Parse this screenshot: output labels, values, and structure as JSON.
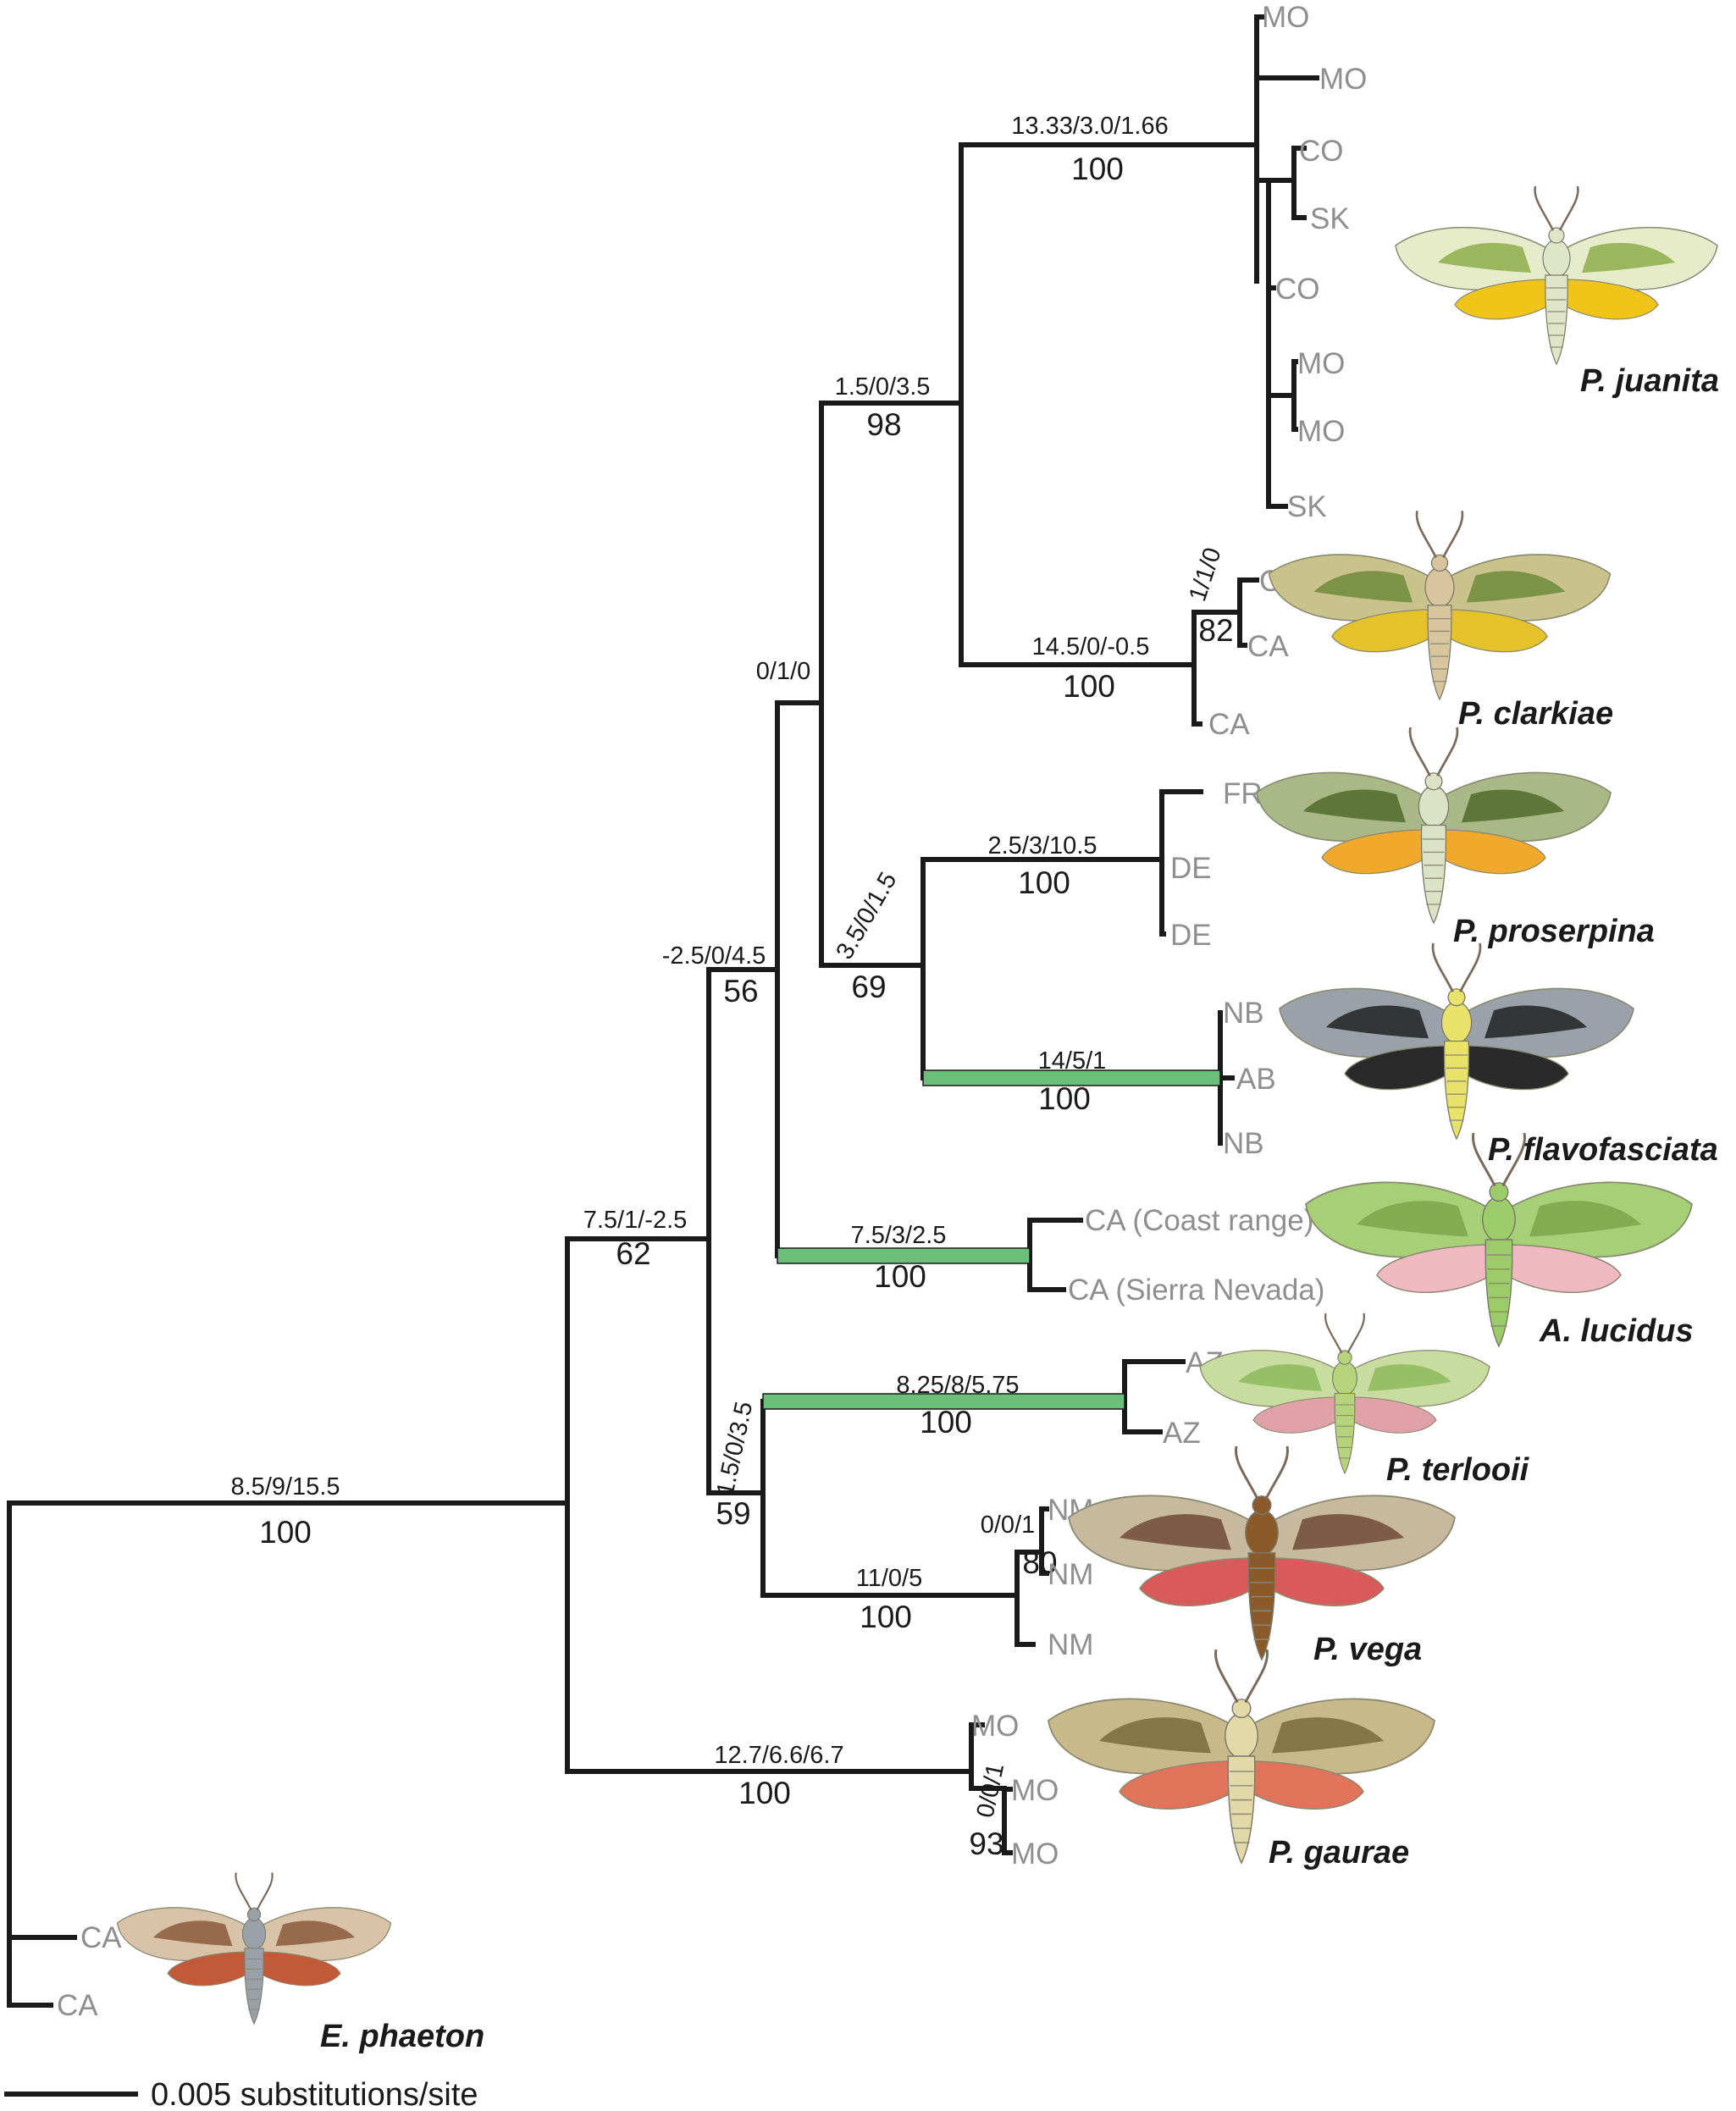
{
  "colors": {
    "branch": "#1a1a1a",
    "highlight_branch": "#6cbf7a",
    "leaf_label": "#8f8f8f"
  },
  "nodes": {
    "root": {
      "stats": "8.5/9/15.5",
      "support": "100"
    },
    "n1": {
      "stats": "7.5/1/-2.5",
      "support": "62"
    },
    "n2": {
      "stats": "-2.5/0/4.5",
      "support": "56"
    },
    "n3": {
      "stats": "0/1/0",
      "support": ""
    },
    "n4": {
      "stats": "1.5/0/3.5",
      "support": "98"
    },
    "juanita": {
      "stats": "13.33/3.0/1.66",
      "support": "100"
    },
    "clarkiae": {
      "stats": "14.5/0/-0.5",
      "support": "100"
    },
    "clarkiae_sub": {
      "stats": "1/1/0",
      "support": "82"
    },
    "n5": {
      "stats": "3.5/0/1.5",
      "support": "69"
    },
    "proserpina": {
      "stats": "2.5/3/10.5",
      "support": "100"
    },
    "flavofasciata": {
      "stats": "14/5/1",
      "support": "100"
    },
    "lucidus": {
      "stats": "7.5/3/2.5",
      "support": "100"
    },
    "n6": {
      "stats": "1.5/0/3.5",
      "support": "59"
    },
    "terlooii": {
      "stats": "8.25/8/5.75",
      "support": "100"
    },
    "vega": {
      "stats": "11/0/5",
      "support": "100"
    },
    "vega_sub": {
      "stats": "0/0/1",
      "support": "80"
    },
    "gaurae": {
      "stats": "12.7/6.6/6.7",
      "support": "100"
    },
    "gaurae_sub": {
      "stats": "0/0/1",
      "support": "93"
    }
  },
  "leaves": {
    "juanita": [
      "MO",
      "MO",
      "CO",
      "SK",
      "CO",
      "MO",
      "MO",
      "SK"
    ],
    "clarkiae": [
      "CA",
      "CA",
      "CA"
    ],
    "proserpina": [
      "FR",
      "DE",
      "DE"
    ],
    "flavofasciata": [
      "NB",
      "AB",
      "NB"
    ],
    "lucidus": [
      "CA (Coast range)",
      "CA (Sierra Nevada)"
    ],
    "terlooii": [
      "AZ",
      "AZ"
    ],
    "vega": [
      "NM",
      "NM",
      "NM"
    ],
    "gaurae": [
      "MO",
      "MO",
      "MO"
    ],
    "phaeton": [
      "CA",
      "CA"
    ]
  },
  "species": {
    "juanita": "P. juanita",
    "clarkiae": "P. clarkiae",
    "proserpina": "P. proserpina",
    "flavofasciata": "P. flavofasciata",
    "lucidus": "A. lucidus",
    "terlooii": "P. terlooii",
    "vega": "P. vega",
    "gaurae": "P. gaurae",
    "phaeton": "E. phaeton"
  },
  "scale_bar": {
    "label": "0.005 substitutions/site"
  },
  "moth_icons": {
    "juanita": {
      "icon": "moth-icon",
      "fore": "#e6ebc9",
      "band": "#8cae4a",
      "hind": "#f0c419",
      "body": "#dfe6c8"
    },
    "clarkiae": {
      "icon": "moth-icon",
      "fore": "#c9c28a",
      "band": "#6f8a3a",
      "hind": "#e5c22a",
      "body": "#d8c59e"
    },
    "proserpina": {
      "icon": "moth-icon",
      "fore": "#a9b886",
      "band": "#4f6b2a",
      "hind": "#f0a92a",
      "body": "#dbe2c6"
    },
    "flavofasciata": {
      "icon": "moth-icon",
      "fore": "#9aa1a8",
      "band": "#222222",
      "hind": "#2a2a2a",
      "body": "#e8e26a"
    },
    "lucidus": {
      "icon": "moth-icon",
      "fore": "#a5d076",
      "band": "#7aa64a",
      "hind": "#f0b8c0",
      "body": "#9ccc6a"
    },
    "terlooii": {
      "icon": "moth-icon",
      "fore": "#c9dca0",
      "band": "#8dbb5a",
      "hind": "#e0a0a8",
      "body": "#b5d37a"
    },
    "vega": {
      "icon": "moth-icon",
      "fore": "#c8b89e",
      "band": "#6e4a3a",
      "hind": "#d95a5a",
      "body": "#8a5a2a"
    },
    "gaurae": {
      "icon": "moth-icon",
      "fore": "#c9b98a",
      "band": "#7a6a3a",
      "hind": "#e0735a",
      "body": "#e3d8a8"
    },
    "phaeton": {
      "icon": "moth-icon",
      "fore": "#d9c3a8",
      "band": "#8a5a3a",
      "hind": "#c25a3a",
      "body": "#9aa0a8"
    }
  }
}
